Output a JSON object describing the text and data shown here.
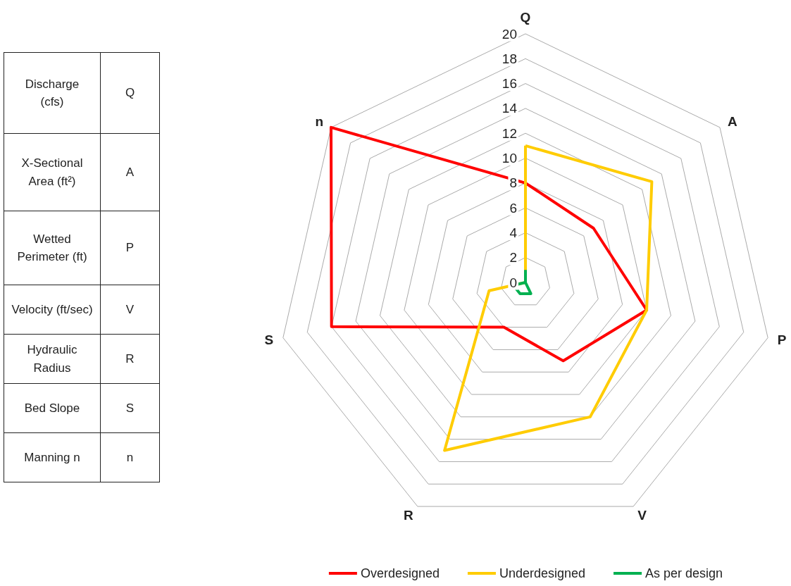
{
  "chart_data": [
    {
      "type": "other",
      "annotations": [
        "Discharge    (cfs)",
        "Q",
        "X-Sectional    Area (ft²)",
        "A",
        "Wetted Perimeter (ft)",
        "P",
        "Velocity (ft/sec)",
        "V",
        "Hydraulic Radius",
        "R",
        "Bed Slope",
        "S",
        "Manning n",
        "n"
      ]
    },
    {
      "type": "radar",
      "categories": [
        "Q",
        "A",
        "P",
        "V",
        "R",
        "S",
        "n"
      ],
      "ylim": [
        0,
        20
      ],
      "yticks": [
        0,
        2,
        4,
        6,
        8,
        10,
        12,
        14,
        16,
        18,
        20
      ],
      "grid": true,
      "legend": "bottom",
      "marker": "none",
      "line_style": "solid",
      "series": [
        {
          "name": "Overdesigned",
          "color": "#ff0000",
          "values": [
            8,
            7,
            10,
            7,
            4,
            16,
            20
          ]
        },
        {
          "name": "Underdesigned",
          "color": "#ffcc00",
          "values": [
            11,
            13,
            10,
            12,
            15,
            3,
            0
          ]
        },
        {
          "name": "As per design",
          "color": "#00b050",
          "values": [
            1,
            0,
            0,
            1,
            1,
            1,
            0
          ]
        }
      ]
    }
  ]
}
